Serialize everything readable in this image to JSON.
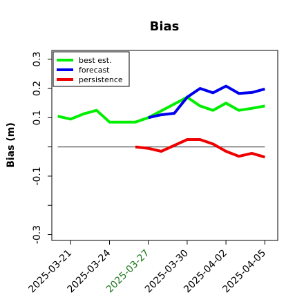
{
  "chart_data": {
    "type": "line",
    "title": "Bias",
    "ylabel": "Bias (m)",
    "xlabel": "",
    "ylim": [
      -0.32,
      0.33
    ],
    "yticks": [
      {
        "value": 0.3,
        "label": "0.3"
      },
      {
        "value": 0.2,
        "label": "0.2"
      },
      {
        "value": 0.1,
        "label": "0.1"
      },
      {
        "value": 0.0,
        "label": ""
      },
      {
        "value": -0.1,
        "label": "-0.1"
      },
      {
        "value": -0.2,
        "label": ""
      },
      {
        "value": -0.3,
        "label": "-0.3"
      }
    ],
    "xlim": [
      "2025-03-19 13:00",
      "2025-04-06 00:00"
    ],
    "xticks": [
      {
        "date": "2025-03-21",
        "label": "2025-03-21",
        "color": "#000000"
      },
      {
        "date": "2025-03-24",
        "label": "2025-03-24",
        "color": "#000000"
      },
      {
        "date": "2025-03-27",
        "label": "2025-03-27",
        "color": "#1f7a1f"
      },
      {
        "date": "2025-03-30",
        "label": "2025-03-30",
        "color": "#000000"
      },
      {
        "date": "2025-04-02",
        "label": "2025-04-02",
        "color": "#000000"
      },
      {
        "date": "2025-04-05",
        "label": "2025-04-05",
        "color": "#000000"
      }
    ],
    "zero_line": {
      "value": 0.0,
      "color": "#555555"
    },
    "legend_position": "upper-left",
    "grid": false,
    "series": [
      {
        "name": "best est.",
        "color": "#00ee00",
        "points": [
          {
            "x": "2025-03-20",
            "y": 0.105
          },
          {
            "x": "2025-03-21",
            "y": 0.095
          },
          {
            "x": "2025-03-22",
            "y": 0.113
          },
          {
            "x": "2025-03-23",
            "y": 0.125
          },
          {
            "x": "2025-03-24",
            "y": 0.085
          },
          {
            "x": "2025-03-25",
            "y": 0.085
          },
          {
            "x": "2025-03-26",
            "y": 0.085
          },
          {
            "x": "2025-03-27",
            "y": 0.1
          },
          {
            "x": "2025-03-30",
            "y": 0.17
          },
          {
            "x": "2025-03-31",
            "y": 0.14
          },
          {
            "x": "2025-04-01",
            "y": 0.125
          },
          {
            "x": "2025-04-02",
            "y": 0.15
          },
          {
            "x": "2025-04-03",
            "y": 0.125
          },
          {
            "x": "2025-04-04",
            "y": 0.132
          },
          {
            "x": "2025-04-05",
            "y": 0.14
          }
        ]
      },
      {
        "name": "forecast",
        "color": "#0000ee",
        "points": [
          {
            "x": "2025-03-27",
            "y": 0.1
          },
          {
            "x": "2025-03-28",
            "y": 0.11
          },
          {
            "x": "2025-03-29",
            "y": 0.115
          },
          {
            "x": "2025-03-30",
            "y": 0.17
          },
          {
            "x": "2025-03-31",
            "y": 0.2
          },
          {
            "x": "2025-04-01",
            "y": 0.185
          },
          {
            "x": "2025-04-02",
            "y": 0.208
          },
          {
            "x": "2025-04-03",
            "y": 0.183
          },
          {
            "x": "2025-04-04",
            "y": 0.186
          },
          {
            "x": "2025-04-05",
            "y": 0.198
          }
        ]
      },
      {
        "name": "persistence",
        "color": "#ee0000",
        "points": [
          {
            "x": "2025-03-26",
            "y": 0.0
          },
          {
            "x": "2025-03-27",
            "y": -0.005
          },
          {
            "x": "2025-03-28",
            "y": -0.015
          },
          {
            "x": "2025-03-29",
            "y": 0.005
          },
          {
            "x": "2025-03-30",
            "y": 0.025
          },
          {
            "x": "2025-03-31",
            "y": 0.025
          },
          {
            "x": "2025-04-01",
            "y": 0.01
          },
          {
            "x": "2025-04-02",
            "y": -0.015
          },
          {
            "x": "2025-04-03",
            "y": -0.032
          },
          {
            "x": "2025-04-04",
            "y": -0.022
          },
          {
            "x": "2025-04-05",
            "y": -0.035
          }
        ]
      }
    ]
  }
}
